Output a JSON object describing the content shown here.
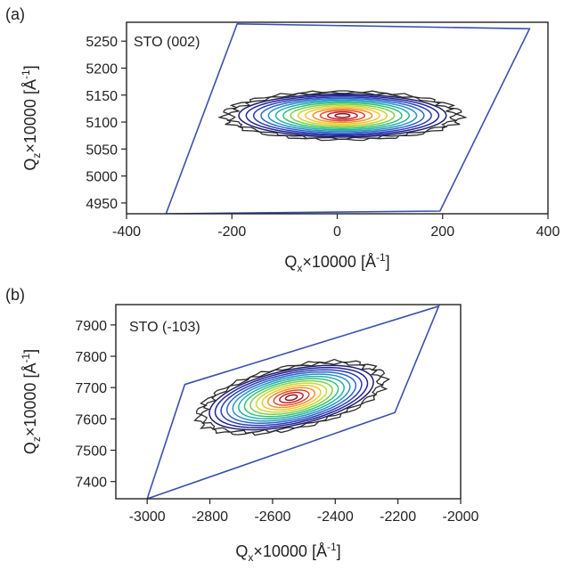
{
  "chart_data": [
    {
      "type": "contour",
      "panel_label": "(a)",
      "annotation": "STO (002)",
      "xlabel_main": "Q",
      "xlabel_sub": "x",
      "xlabel_rest": "×10000 [Å",
      "ylabel_main": "Q",
      "ylabel_sub": "z",
      "ylabel_rest": "×10000 [Å",
      "unit_sup": "-1",
      "unit_close": "]",
      "xlim": [
        -400,
        400
      ],
      "ylim": [
        4930,
        5285
      ],
      "xticks": [
        -400,
        -200,
        0,
        200,
        400
      ],
      "yticks": [
        4950,
        5000,
        5050,
        5100,
        5150,
        5200,
        5250
      ],
      "scan_boundary": [
        [
          -325,
          4930
        ],
        [
          -190,
          5282
        ],
        [
          365,
          5273
        ],
        [
          195,
          4935
        ]
      ],
      "peak": {
        "x": 10,
        "y": 5112,
        "x_halfwidth_outer": 225,
        "y_halfwidth_outer": 45,
        "tilt_deg": 0
      }
    },
    {
      "type": "contour",
      "panel_label": "(b)",
      "annotation": "STO (-103)",
      "xlabel_main": "Q",
      "xlabel_sub": "x",
      "xlabel_rest": "×10000 [Å",
      "ylabel_main": "Q",
      "ylabel_sub": "z",
      "ylabel_rest": "×10000 [Å",
      "unit_sup": "-1",
      "unit_close": "]",
      "xlim": [
        -3100,
        -2000
      ],
      "ylim": [
        7345,
        7965
      ],
      "xticks": [
        -3000,
        -2800,
        -2600,
        -2400,
        -2200,
        -2000
      ],
      "yticks": [
        7400,
        7500,
        7600,
        7700,
        7800,
        7900
      ],
      "scan_boundary": [
        [
          -3000,
          7345
        ],
        [
          -2880,
          7710
        ],
        [
          -2070,
          7960
        ],
        [
          -2210,
          7620
        ]
      ],
      "peak": {
        "x": -2540,
        "y": 7668,
        "x_halfwidth_outer": 305,
        "y_halfwidth_outer": 100,
        "tilt_deg": 12
      }
    }
  ]
}
